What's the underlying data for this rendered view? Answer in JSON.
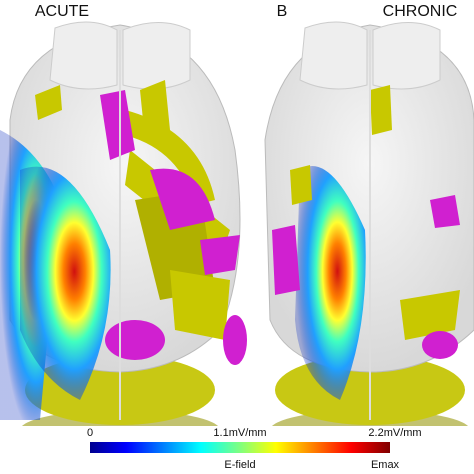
{
  "panels": [
    {
      "label": "ACUTE"
    },
    {
      "letter": "B",
      "label": "CHRONIC"
    }
  ],
  "colorbar": {
    "ticks": [
      "0",
      "1.1mV/mm",
      "2.2mV/mm"
    ],
    "title": "E-field",
    "max_label": "Emax"
  }
}
